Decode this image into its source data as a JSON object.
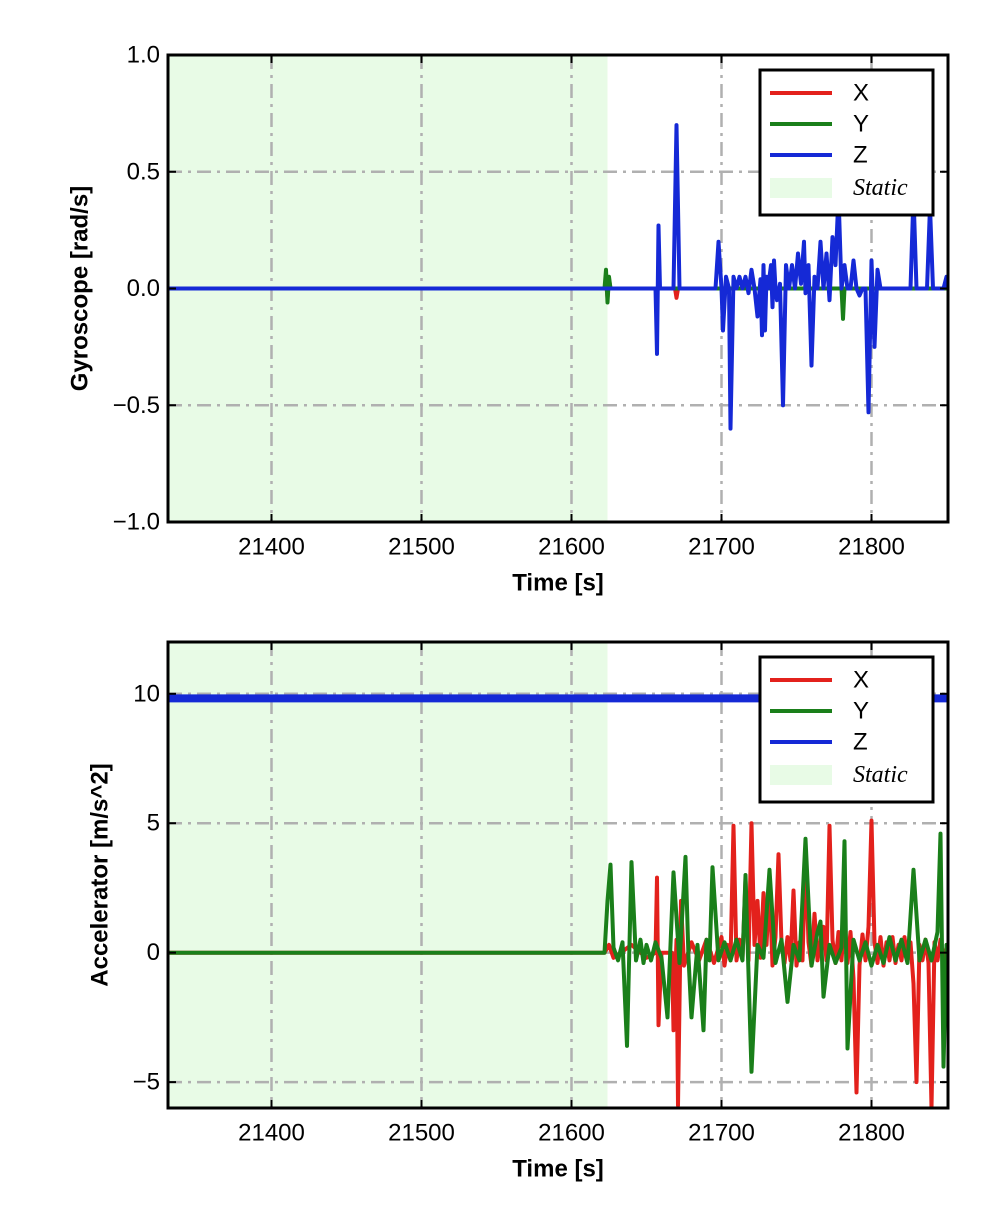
{
  "chart_data": [
    {
      "type": "line",
      "xlabel": "Time [s]",
      "ylabel": "Gyroscope [rad/s]",
      "xlim": [
        21331,
        21851
      ],
      "ylim": [
        -1.0,
        1.0
      ],
      "xticks": [
        21400,
        21500,
        21600,
        21700,
        21800
      ],
      "xtick_labels": [
        "21400",
        "21500",
        "21600",
        "21700",
        "21800"
      ],
      "yticks": [
        -1.0,
        -0.5,
        0.0,
        0.5,
        1.0
      ],
      "ytick_labels": [
        "−1.0",
        "−0.5",
        "0.0",
        "0.5",
        "1.0"
      ],
      "grid": true,
      "legend_position": "top-right",
      "static_region": {
        "label": "Static",
        "x": [
          21331,
          21624
        ],
        "color": "#e8fbe6"
      },
      "series": [
        {
          "name": "X",
          "color": "#e3211c",
          "x": [
            21331,
            21622,
            21623,
            21624,
            21625,
            21626,
            21669,
            21670,
            21671,
            21851
          ],
          "y": [
            0,
            0,
            0.03,
            -0.04,
            0.04,
            0,
            0,
            -0.04,
            0,
            0
          ]
        },
        {
          "name": "Y",
          "color": "#1a7f1a",
          "x": [
            21331,
            21622,
            21623,
            21624,
            21625,
            21626,
            21780,
            21781,
            21782,
            21851
          ],
          "y": [
            0,
            0,
            0.08,
            -0.06,
            0.05,
            0,
            0,
            -0.13,
            0,
            0
          ]
        },
        {
          "name": "Z",
          "color": "#1529d6",
          "x": [
            21331,
            21656,
            21657,
            21658,
            21659,
            21660,
            21668,
            21670,
            21672,
            21696,
            21698,
            21700,
            21701,
            21703,
            21705,
            21706,
            21708,
            21710,
            21712,
            21714,
            21716,
            21718,
            21720,
            21722,
            21724,
            21726,
            21727,
            21728,
            21729,
            21730,
            21731,
            21733,
            21734,
            21735,
            21736,
            21737,
            21739,
            21741,
            21743,
            21745,
            21747,
            21749,
            21751,
            21753,
            21755,
            21756,
            21757,
            21758,
            21760,
            21762,
            21764,
            21766,
            21768,
            21770,
            21772,
            21774,
            21776,
            21778,
            21780,
            21782,
            21784,
            21786,
            21788,
            21790,
            21792,
            21794,
            21796,
            21798,
            21800,
            21802,
            21804,
            21806,
            21808,
            21826,
            21828,
            21830,
            21832,
            21837,
            21839,
            21841,
            21843,
            21846,
            21848,
            21850,
            21851
          ],
          "y": [
            0,
            0,
            -0.28,
            0.27,
            0,
            0,
            0,
            0.7,
            0,
            0,
            0.2,
            0,
            -0.18,
            0.05,
            0,
            -0.6,
            0.05,
            0,
            0.05,
            0,
            0.05,
            -0.02,
            0.08,
            0,
            -0.12,
            0.04,
            -0.2,
            0.1,
            -0.18,
            0.05,
            0,
            0.1,
            -0.08,
            0.12,
            0,
            -0.05,
            0.02,
            -0.5,
            0.1,
            0,
            0.1,
            0,
            0.15,
            0.02,
            0.2,
            -0.02,
            0,
            0.1,
            -0.33,
            0.05,
            0,
            0.2,
            0,
            0.15,
            -0.05,
            0.22,
            0.1,
            0.4,
            0,
            0.1,
            0,
            0,
            0.12,
            0,
            -0.03,
            0,
            0,
            -0.53,
            0.12,
            -0.25,
            0.08,
            0,
            0,
            0,
            0.4,
            0,
            0,
            0,
            0.35,
            0,
            0,
            0,
            0,
            0.05,
            0
          ]
        }
      ]
    },
    {
      "type": "line",
      "xlabel": "Time [s]",
      "ylabel": "Accelerator [m/s^2]",
      "xlim": [
        21331,
        21851
      ],
      "ylim": [
        -6.0,
        12.0
      ],
      "xticks": [
        21400,
        21500,
        21600,
        21700,
        21800
      ],
      "xtick_labels": [
        "21400",
        "21500",
        "21600",
        "21700",
        "21800"
      ],
      "yticks": [
        -5,
        0,
        5,
        10
      ],
      "ytick_labels": [
        "−5",
        "0",
        "5",
        "10"
      ],
      "grid": true,
      "legend_position": "top-right",
      "static_region": {
        "label": "Static",
        "x": [
          21331,
          21624
        ],
        "color": "#e8fbe6"
      },
      "series": [
        {
          "name": "X",
          "color": "#e3211c",
          "x": [
            21331,
            21622,
            21625,
            21628,
            21640,
            21650,
            21656,
            21657,
            21658,
            21660,
            21667,
            21668,
            21670,
            21671,
            21673,
            21675,
            21680,
            21685,
            21690,
            21695,
            21700,
            21702,
            21704,
            21706,
            21708,
            21710,
            21712,
            21714,
            21716,
            21718,
            21720,
            21722,
            21724,
            21726,
            21728,
            21730,
            21732,
            21734,
            21736,
            21738,
            21740,
            21742,
            21744,
            21746,
            21748,
            21750,
            21752,
            21754,
            21756,
            21758,
            21760,
            21762,
            21764,
            21766,
            21768,
            21770,
            21772,
            21774,
            21776,
            21778,
            21780,
            21782,
            21784,
            21786,
            21788,
            21790,
            21792,
            21794,
            21796,
            21798,
            21800,
            21802,
            21804,
            21806,
            21808,
            21810,
            21812,
            21814,
            21816,
            21818,
            21820,
            21822,
            21824,
            21826,
            21828,
            21830,
            21832,
            21834,
            21836,
            21838,
            21840,
            21842,
            21844,
            21846,
            21848,
            21850,
            21851
          ],
          "y": [
            0,
            0,
            0.3,
            -0.2,
            0.3,
            -0.2,
            0,
            2.9,
            -2.8,
            0,
            0,
            -3.0,
            0.5,
            -5.9,
            2.0,
            -0.5,
            0.4,
            -0.3,
            0.5,
            -0.4,
            0.6,
            -0.5,
            0.3,
            -0.3,
            4.9,
            -0.3,
            0.5,
            -0.2,
            2.8,
            -0.3,
            5.0,
            0.3,
            2.0,
            -0.2,
            2.3,
            0.3,
            2.6,
            -0.5,
            0.6,
            3.8,
            0.4,
            -0.4,
            0.6,
            -0.3,
            2.4,
            -0.5,
            0.4,
            -0.3,
            3.8,
            0.4,
            -0.5,
            1.5,
            -0.3,
            0.5,
            1.0,
            -0.3,
            4.9,
            0.5,
            -0.4,
            0.8,
            -0.3,
            1.3,
            -0.4,
            0.8,
            -1.0,
            -5.4,
            -0.5,
            0.7,
            -0.3,
            1.0,
            5.1,
            0.4,
            -0.4,
            0.6,
            -0.5,
            0.4,
            -0.3,
            0.6,
            -0.4,
            0.3,
            -0.3,
            0.6,
            -0.3,
            0.4,
            -1.2,
            -5.0,
            0.3,
            -0.3,
            0.5,
            -0.4,
            -6.0,
            0.4,
            -0.3,
            0.5,
            -0.3,
            0.2,
            0
          ]
        },
        {
          "name": "Y",
          "color": "#1a7f1a",
          "x": [
            21331,
            21622,
            21624,
            21626,
            21628,
            21631,
            21634,
            21637,
            21640,
            21643,
            21646,
            21648,
            21650,
            21653,
            21656,
            21660,
            21664,
            21668,
            21672,
            21676,
            21678,
            21680,
            21684,
            21688,
            21690,
            21692,
            21694,
            21698,
            21702,
            21706,
            21710,
            21714,
            21716,
            21720,
            21724,
            21728,
            21732,
            21736,
            21740,
            21744,
            21748,
            21752,
            21756,
            21760,
            21764,
            21766,
            21768,
            21772,
            21776,
            21780,
            21782,
            21784,
            21788,
            21792,
            21796,
            21800,
            21804,
            21808,
            21812,
            21816,
            21820,
            21824,
            21828,
            21832,
            21836,
            21840,
            21844,
            21846,
            21848,
            21850,
            21851
          ],
          "y": [
            0,
            0,
            2.0,
            3.4,
            0.2,
            -0.3,
            0.4,
            -3.6,
            3.5,
            -0.3,
            0.5,
            -0.4,
            0.3,
            -0.3,
            0.4,
            -0.2,
            -2.5,
            3.1,
            -0.4,
            3.7,
            -0.2,
            -2.5,
            0.3,
            -3.0,
            0.5,
            -0.3,
            3.3,
            -0.3,
            0.4,
            -0.3,
            0.5,
            -0.3,
            3.0,
            -4.6,
            0.3,
            -0.2,
            3.2,
            -0.4,
            0.5,
            -1.9,
            0.3,
            -0.3,
            4.4,
            -0.5,
            0.8,
            1.2,
            -1.7,
            0.3,
            -0.4,
            0.2,
            4.3,
            -3.7,
            0.5,
            -0.3,
            0.4,
            -0.5,
            0.3,
            -0.4,
            0.6,
            -0.3,
            0.5,
            -0.4,
            3.2,
            -0.3,
            0.5,
            -0.3,
            0.8,
            4.6,
            -4.4,
            0.3,
            0
          ]
        },
        {
          "name": "Z",
          "color": "#1529d6",
          "x": [
            21331,
            21851
          ],
          "y": [
            9.82,
            9.82
          ]
        }
      ]
    }
  ]
}
